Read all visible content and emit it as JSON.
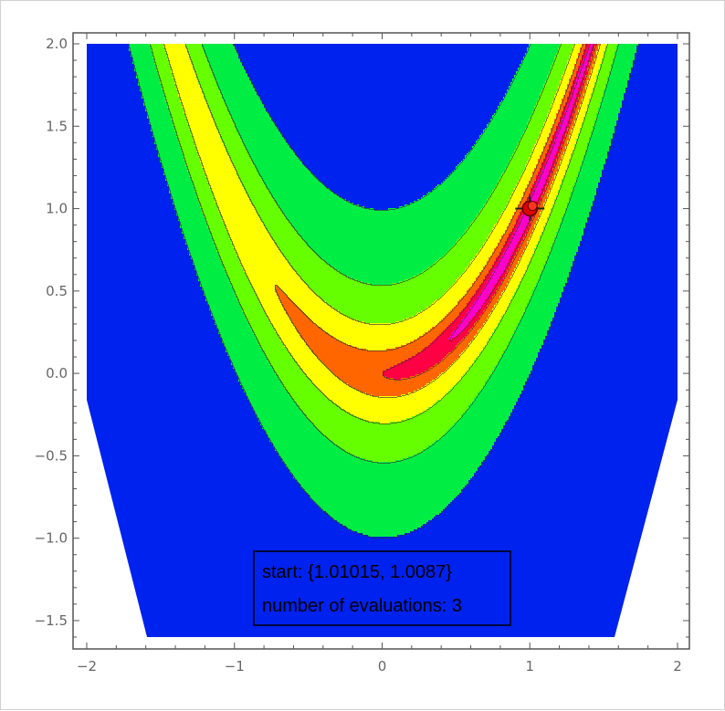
{
  "chart_data": {
    "type": "contour",
    "function": "(1 - x)^2 + 100 (y - x^2)^2",
    "xlim": [
      -2,
      2
    ],
    "ylim": [
      -1.6,
      2.0
    ],
    "x_ticks": [
      -2,
      -1,
      0,
      1,
      2
    ],
    "y_ticks": [
      -1.5,
      -1.0,
      -0.5,
      0.0,
      0.5,
      1.0,
      1.5,
      2.0
    ],
    "x_tick_labels": [
      "−2",
      "−1",
      "0",
      "1",
      "2"
    ],
    "y_tick_labels": [
      "−1.5",
      "−1.0",
      "−0.5",
      "0.0",
      "0.5",
      "1.0",
      "1.5",
      "2.0"
    ],
    "contour_bands": [
      {
        "color": "#0022ee",
        "level": "outer"
      },
      {
        "color": "#00ee44",
        "level": "band 1"
      },
      {
        "color": "#66ff00",
        "level": "band 2"
      },
      {
        "color": "#ffff00",
        "level": "band 3"
      },
      {
        "color": "#ff6600",
        "level": "band 4"
      },
      {
        "color": "#ff0044",
        "level": "band 5"
      },
      {
        "color": "#ff00cc",
        "level": "band 6"
      }
    ],
    "minimum_marker": {
      "x": 1.0,
      "y": 1.0
    },
    "annotation_lines": [
      "start: {1.01015, 1.0087}",
      "number of evaluations: 3"
    ],
    "grid": false,
    "legend": "none"
  },
  "colors": {
    "background": "#ffffff",
    "frame": "#555555",
    "tick_text": "#666666",
    "contour_line": "#333333",
    "marker": "#dd0000"
  }
}
